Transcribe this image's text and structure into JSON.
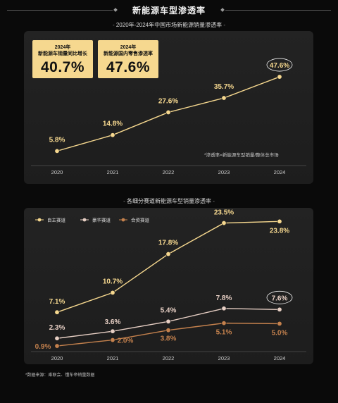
{
  "page": {
    "title": "新能源车型渗透率",
    "section1_title": "2020年-2024年中国市场新能源销量渗透率",
    "section2_title": "各细分赛道新能源车型销量渗透率",
    "section_dash": "-",
    "footnote": "*数据来源：乘联会、懂车帝销量数据",
    "note1": "*渗透率=新能源车型销量/整体总市场"
  },
  "kpis": [
    {
      "line1": "2024年",
      "line2": "新能源车销量同比增长",
      "value": "40.7%"
    },
    {
      "line1": "2024年",
      "line2": "新能源国内零售渗透率",
      "value": "47.6%"
    }
  ],
  "colors": {
    "gold": "#f6d88f",
    "luxury": "#e7cfc4",
    "jv": "#c4814d",
    "axis": "#6a6a6a"
  },
  "chart_data": [
    {
      "type": "line",
      "title": "2020年-2024年中国市场新能源销量渗透率",
      "categories": [
        "2020",
        "2021",
        "2022",
        "2023",
        "2024"
      ],
      "series": [
        {
          "values": [
            5.8,
            14.8,
            27.6,
            35.7,
            47.6
          ],
          "labels": [
            "5.8%",
            "14.8%",
            "27.6%",
            "35.7%",
            "47.6%"
          ]
        }
      ],
      "ylim": [
        0,
        50
      ],
      "grid": false,
      "highlight": "47.6%"
    },
    {
      "type": "line",
      "title": "各细分赛道新能源车型销量渗透率",
      "categories": [
        "2020",
        "2021",
        "2022",
        "2023",
        "2024"
      ],
      "series": [
        {
          "name": "自主赛道",
          "values": [
            7.1,
            10.7,
            17.8,
            23.5,
            23.8
          ],
          "labels": [
            "7.1%",
            "10.7%",
            "17.8%",
            "23.5%",
            "23.8%"
          ]
        },
        {
          "name": "豪华赛道",
          "values": [
            2.3,
            3.6,
            5.4,
            7.8,
            7.6
          ],
          "labels": [
            "2.3%",
            "3.6%",
            "5.4%",
            "7.8%",
            "7.6%"
          ]
        },
        {
          "name": "合资赛道",
          "values": [
            0.9,
            2.0,
            3.8,
            5.1,
            5.0
          ],
          "labels": [
            "0.9%",
            "2.0%",
            "3.8%",
            "5.1%",
            "5.0%"
          ]
        }
      ],
      "ylim": [
        0,
        25
      ],
      "legend": "top-left",
      "grid": false,
      "highlight": "7.6%"
    }
  ]
}
